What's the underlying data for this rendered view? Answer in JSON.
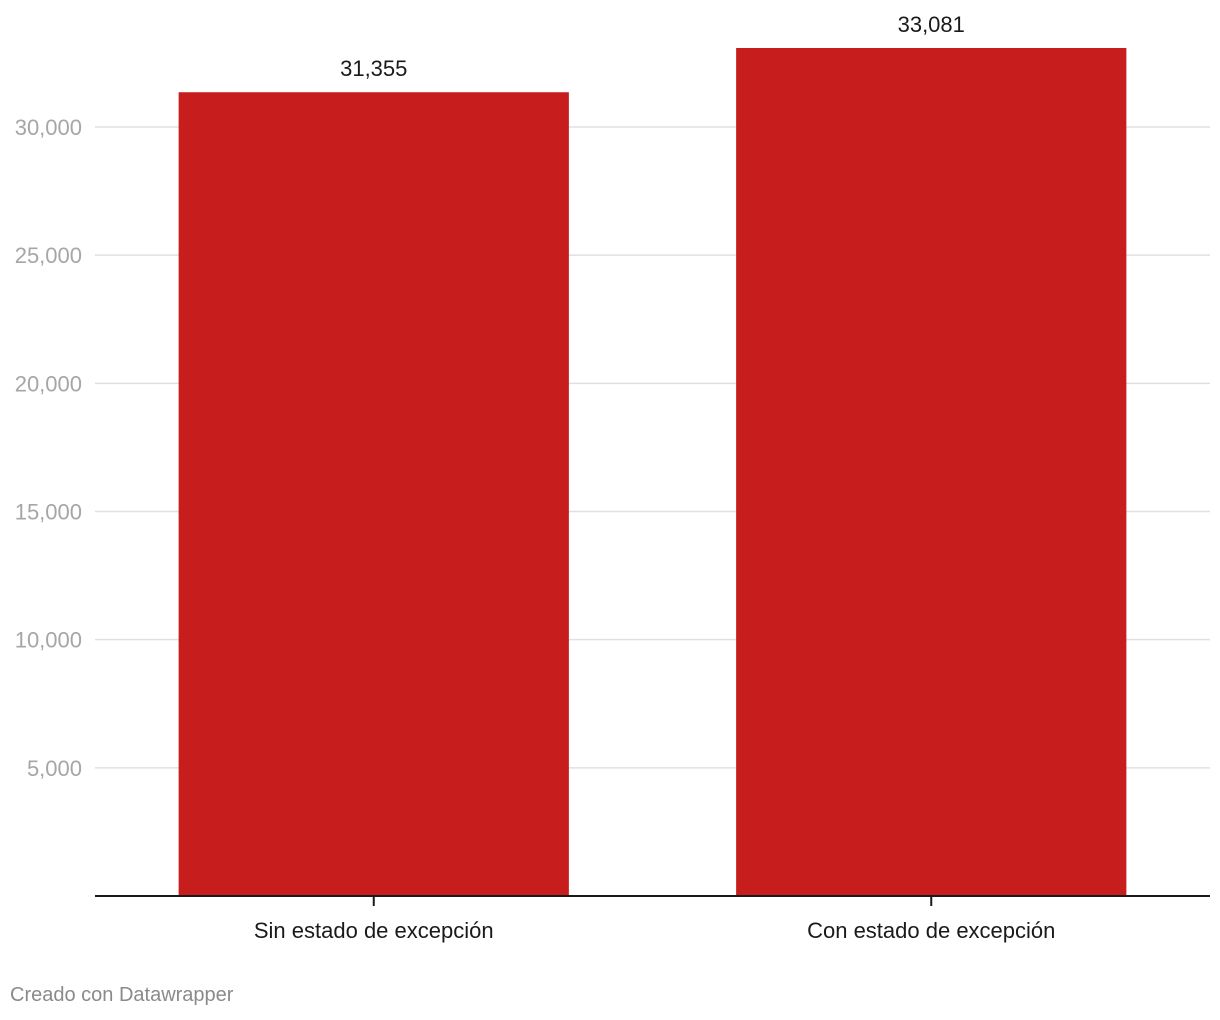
{
  "chart_data": {
    "type": "bar",
    "categories": [
      "Sin estado de excepción",
      "Con estado de excepción"
    ],
    "values": [
      31355,
      33081
    ],
    "value_labels": [
      "31,355",
      "33,081"
    ],
    "yticks": [
      5000,
      10000,
      15000,
      20000,
      25000,
      30000
    ],
    "ytick_labels": [
      "5,000",
      "10,000",
      "15,000",
      "20,000",
      "25,000",
      "30,000"
    ],
    "ylim": [
      0,
      33081
    ],
    "grid": true,
    "bar_color": "#c71d1d",
    "grid_color": "#e0e0e0",
    "axis_color": "#1a1a1a"
  },
  "footer": {
    "credit": "Creado con Datawrapper"
  }
}
